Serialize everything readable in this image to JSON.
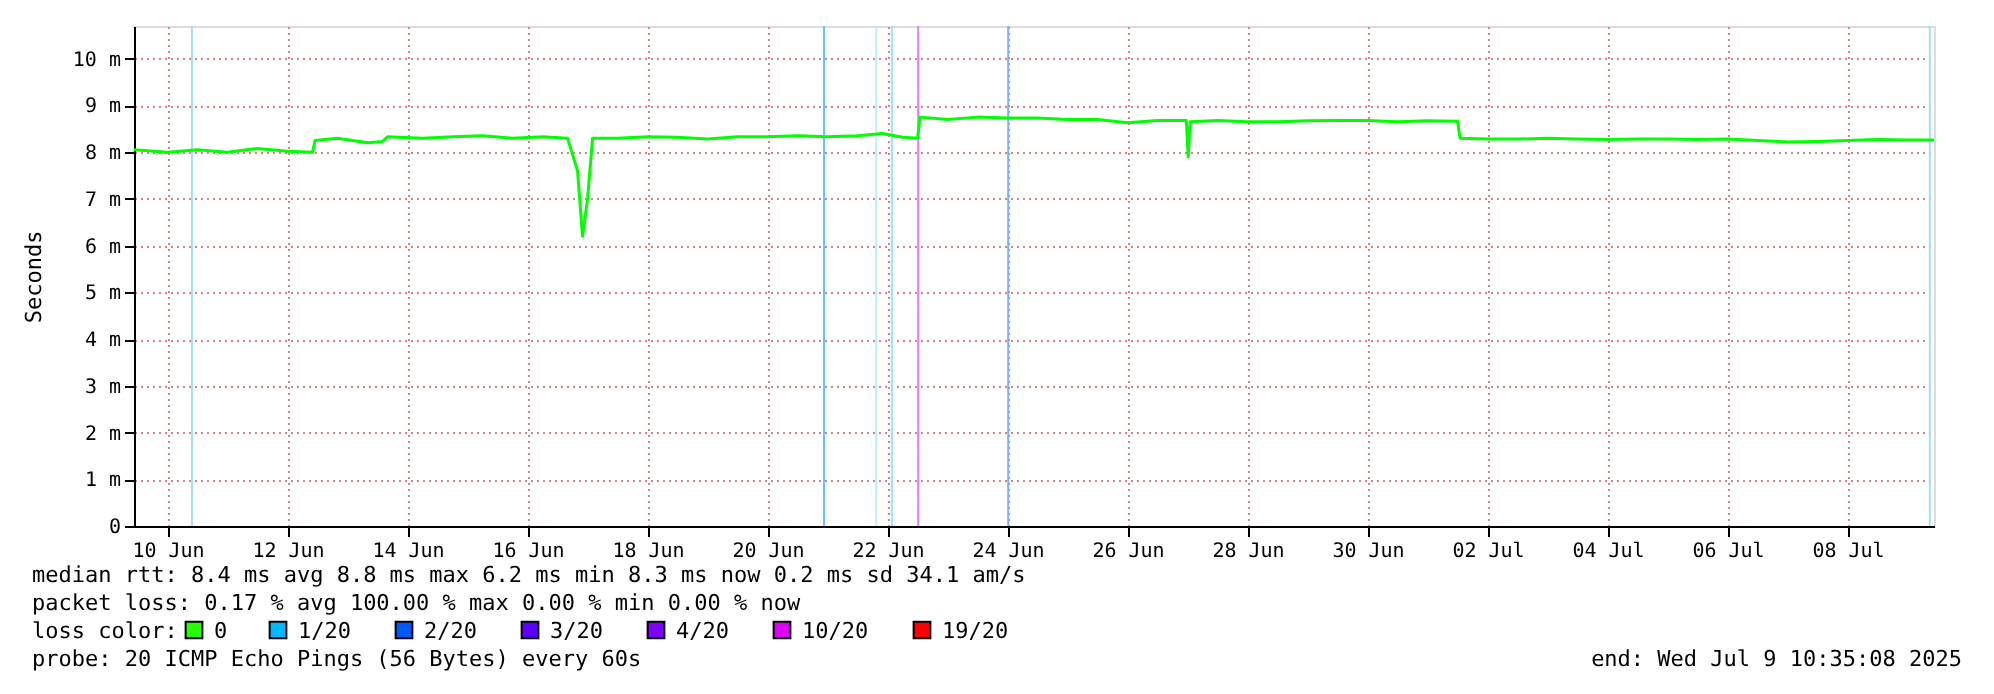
{
  "chart_data": {
    "type": "line",
    "ylabel": "Seconds",
    "xlim": [
      "2025-06-09T10:35",
      "2025-07-09T10:35"
    ],
    "xticks": [
      {
        "value": "2025-06-10",
        "label": "10 Jun"
      },
      {
        "value": "2025-06-12",
        "label": "12 Jun"
      },
      {
        "value": "2025-06-14",
        "label": "14 Jun"
      },
      {
        "value": "2025-06-16",
        "label": "16 Jun"
      },
      {
        "value": "2025-06-18",
        "label": "18 Jun"
      },
      {
        "value": "2025-06-20",
        "label": "20 Jun"
      },
      {
        "value": "2025-06-22",
        "label": "22 Jun"
      },
      {
        "value": "2025-06-24",
        "label": "24 Jun"
      },
      {
        "value": "2025-06-26",
        "label": "26 Jun"
      },
      {
        "value": "2025-06-28",
        "label": "28 Jun"
      },
      {
        "value": "2025-06-30",
        "label": "30 Jun"
      },
      {
        "value": "2025-07-02",
        "label": "02 Jul"
      },
      {
        "value": "2025-07-04",
        "label": "04 Jul"
      },
      {
        "value": "2025-07-06",
        "label": "06 Jul"
      },
      {
        "value": "2025-07-08",
        "label": "08 Jul"
      }
    ],
    "ylim": [
      0,
      10.7
    ],
    "yticks": [
      0,
      {
        "value": 1,
        "label": "1 m"
      },
      {
        "value": 2,
        "label": "2 m"
      },
      {
        "value": 3,
        "label": "3 m"
      },
      {
        "value": 4,
        "label": "4 m"
      },
      {
        "value": 5,
        "label": "5 m"
      },
      {
        "value": 6,
        "label": "6 m"
      },
      {
        "value": 7,
        "label": "7 m"
      },
      {
        "value": 8,
        "label": "8 m"
      },
      {
        "value": 9,
        "label": "9 m"
      },
      {
        "value": 10,
        "label": "10 m"
      }
    ],
    "grid": true,
    "x": [
      "2025-06-09T10:35",
      "2025-06-10T00:00",
      "2025-06-10T12:00",
      "2025-06-11T00:00",
      "2025-06-11T12:00",
      "2025-06-12T00:00",
      "2025-06-12T10:00",
      "2025-06-12T11:00",
      "2025-06-12T20:00",
      "2025-06-13T08:00",
      "2025-06-13T14:00",
      "2025-06-13T16:00",
      "2025-06-14T06:00",
      "2025-06-14T18:00",
      "2025-06-15T06:00",
      "2025-06-15T18:00",
      "2025-06-16T06:00",
      "2025-06-16T16:00",
      "2025-06-16T20:00",
      "2025-06-16T22:00",
      "2025-06-17T00:00",
      "2025-06-17T02:00",
      "2025-06-17T12:00",
      "2025-06-18T00:00",
      "2025-06-18T12:00",
      "2025-06-19T00:00",
      "2025-06-19T12:00",
      "2025-06-20T00:00",
      "2025-06-20T12:00",
      "2025-06-21T00:00",
      "2025-06-21T12:00",
      "2025-06-21T22:00",
      "2025-06-22T06:00",
      "2025-06-22T12:00",
      "2025-06-22T13:00",
      "2025-06-23T00:00",
      "2025-06-23T12:00",
      "2025-06-24T00:00",
      "2025-06-24T12:00",
      "2025-06-25T00:00",
      "2025-06-25T12:00",
      "2025-06-26T00:00",
      "2025-06-26T12:00",
      "2025-06-26T23:30",
      "2025-06-27T00:15",
      "2025-06-27T01:00",
      "2025-06-27T12:00",
      "2025-06-28T00:00",
      "2025-06-28T12:00",
      "2025-06-29T00:00",
      "2025-06-29T12:00",
      "2025-06-30T00:00",
      "2025-06-30T12:00",
      "2025-07-01T00:00",
      "2025-07-01T12:00",
      "2025-07-01T13:00",
      "2025-07-02T00:00",
      "2025-07-02T12:00",
      "2025-07-03T00:00",
      "2025-07-03T12:00",
      "2025-07-04T00:00",
      "2025-07-04T12:00",
      "2025-07-05T00:00",
      "2025-07-05T12:00",
      "2025-07-06T00:00",
      "2025-07-06T12:00",
      "2025-07-07T00:00",
      "2025-07-07T12:00",
      "2025-07-08T00:00",
      "2025-07-08T12:00",
      "2025-07-09T00:00",
      "2025-07-09T10:35"
    ],
    "series": [
      {
        "color": "#00ff00",
        "values": [
          8.05,
          8.0,
          8.05,
          8.0,
          8.08,
          8.02,
          8.0,
          8.25,
          8.3,
          8.2,
          8.23,
          8.33,
          8.3,
          8.33,
          8.35,
          8.3,
          8.33,
          8.3,
          7.6,
          6.2,
          7.0,
          8.3,
          8.3,
          8.33,
          8.32,
          8.28,
          8.33,
          8.33,
          8.35,
          8.33,
          8.35,
          8.4,
          8.32,
          8.3,
          8.75,
          8.7,
          8.75,
          8.73,
          8.73,
          8.7,
          8.7,
          8.63,
          8.68,
          8.68,
          7.9,
          8.65,
          8.68,
          8.65,
          8.65,
          8.67,
          8.68,
          8.68,
          8.65,
          8.67,
          8.66,
          8.3,
          8.28,
          8.28,
          8.3,
          8.28,
          8.27,
          8.28,
          8.28,
          8.27,
          8.28,
          8.25,
          8.22,
          8.23,
          8.25,
          8.27,
          8.26,
          8.26
        ]
      }
    ],
    "ref_lines": [
      {
        "axis": "x",
        "value": "2025-06-10T09:45",
        "color": "#a0e0ff"
      },
      {
        "axis": "x",
        "value": "2025-06-20T22:35",
        "color": "#60c8ff"
      },
      {
        "axis": "x",
        "value": "2025-06-21T19:30",
        "color": "#c0ecff"
      },
      {
        "axis": "x",
        "value": "2025-06-22T01:45",
        "color": "#a0e0ff"
      },
      {
        "axis": "x",
        "value": "2025-06-22T12:15",
        "color": "#e080ff"
      },
      {
        "axis": "x",
        "value": "2025-06-24T00:15",
        "color": "#80b0ff"
      },
      {
        "axis": "x",
        "value": "2025-07-09T08:55",
        "color": "#a0e0ff"
      }
    ],
    "annotations": [
      "median rtt:  8.4 ms avg  8.8 ms max  6.2 ms min  8.3 ms now  0.2 ms sd  34.1   am/s",
      "packet loss: 0.17 % avg  100.00 % max  0.00 % min  0.00 % now",
      "loss color:",
      "0",
      "1/20",
      "2/20",
      "3/20",
      "4/20",
      "10/20",
      "19/20",
      "probe:       20 ICMP Echo Pings (56 Bytes) every 60s",
      "end: Wed Jul  9 10:35:08 2025"
    ]
  }
}
